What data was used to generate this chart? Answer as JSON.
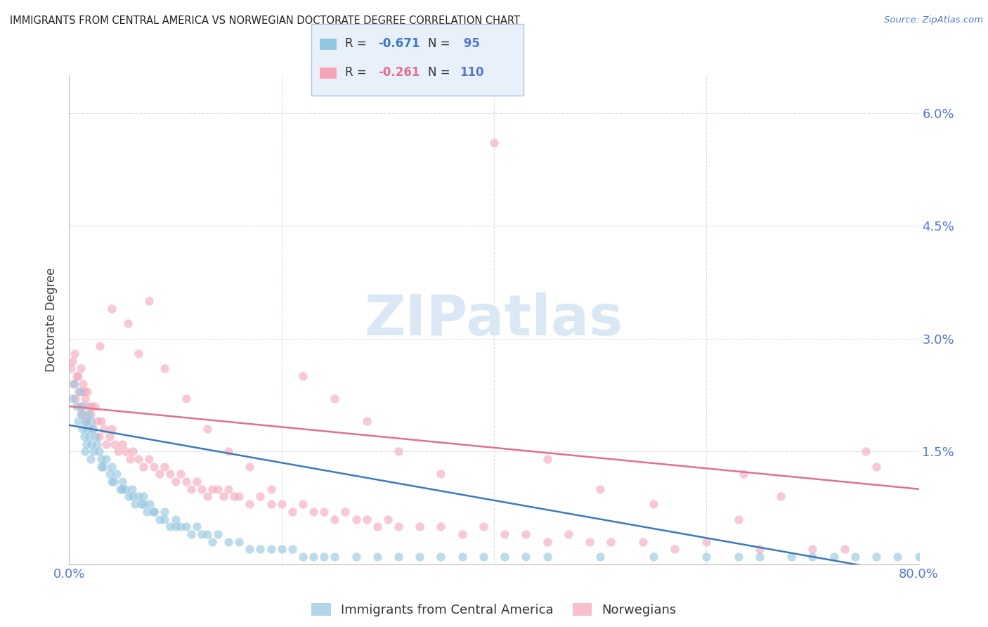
{
  "title": "IMMIGRANTS FROM CENTRAL AMERICA VS NORWEGIAN DOCTORATE DEGREE CORRELATION CHART",
  "source": "Source: ZipAtlas.com",
  "ylabel": "Doctorate Degree",
  "x_min": 0.0,
  "x_max": 80.0,
  "y_min": 0.0,
  "y_max": 6.5,
  "ytick_vals": [
    0.0,
    1.5,
    3.0,
    4.5,
    6.0
  ],
  "ytick_labels": [
    "",
    "1.5%",
    "3.0%",
    "4.5%",
    "6.0%"
  ],
  "xtick_vals": [
    0.0,
    20.0,
    40.0,
    60.0,
    80.0
  ],
  "xtick_labels": [
    "0.0%",
    "",
    "",
    "",
    "80.0%"
  ],
  "blue_R": "-0.671",
  "blue_N": "95",
  "pink_R": "-0.261",
  "pink_N": "110",
  "blue_color": "#92c5de",
  "pink_color": "#f4a6b8",
  "blue_line_color": "#3a7abf",
  "pink_line_color": "#e07090",
  "watermark_text": "ZIPatlas",
  "watermark_color": "#dae8f5",
  "grid_color": "#d8dff0",
  "background_color": "#ffffff",
  "tick_label_color": "#5577cc",
  "title_color": "#222222",
  "legend_bg_color": "#e8f0fa",
  "legend_edge_color": "#b0c4e8",
  "blue_scatter_x": [
    0.3,
    0.5,
    0.7,
    0.8,
    1.0,
    1.1,
    1.2,
    1.3,
    1.4,
    1.5,
    1.6,
    1.7,
    1.8,
    1.9,
    2.0,
    2.1,
    2.2,
    2.3,
    2.5,
    2.6,
    2.8,
    3.0,
    3.2,
    3.5,
    3.8,
    4.0,
    4.2,
    4.5,
    4.8,
    5.0,
    5.3,
    5.6,
    5.9,
    6.2,
    6.5,
    6.8,
    7.0,
    7.3,
    7.6,
    8.0,
    8.5,
    9.0,
    9.5,
    10.0,
    10.5,
    11.0,
    11.5,
    12.0,
    12.5,
    13.0,
    13.5,
    14.0,
    15.0,
    16.0,
    17.0,
    18.0,
    19.0,
    20.0,
    21.0,
    22.0,
    23.0,
    24.0,
    25.0,
    27.0,
    29.0,
    31.0,
    33.0,
    35.0,
    37.0,
    39.0,
    41.0,
    43.0,
    45.0,
    50.0,
    55.0,
    60.0,
    63.0,
    65.0,
    68.0,
    70.0,
    72.0,
    74.0,
    76.0,
    78.0,
    80.0,
    1.5,
    2.0,
    3.0,
    4.0,
    5.0,
    6.0,
    7.0,
    8.0,
    9.0,
    10.0
  ],
  "blue_scatter_y": [
    2.2,
    2.4,
    2.1,
    1.9,
    2.3,
    2.0,
    1.8,
    2.1,
    1.7,
    1.9,
    1.6,
    1.8,
    2.0,
    1.7,
    1.9,
    1.6,
    1.8,
    1.5,
    1.7,
    1.6,
    1.5,
    1.4,
    1.3,
    1.4,
    1.2,
    1.3,
    1.1,
    1.2,
    1.0,
    1.1,
    1.0,
    0.9,
    1.0,
    0.8,
    0.9,
    0.8,
    0.9,
    0.7,
    0.8,
    0.7,
    0.6,
    0.7,
    0.5,
    0.6,
    0.5,
    0.5,
    0.4,
    0.5,
    0.4,
    0.4,
    0.3,
    0.4,
    0.3,
    0.3,
    0.2,
    0.2,
    0.2,
    0.2,
    0.2,
    0.1,
    0.1,
    0.1,
    0.1,
    0.1,
    0.1,
    0.1,
    0.1,
    0.1,
    0.1,
    0.1,
    0.1,
    0.1,
    0.1,
    0.1,
    0.1,
    0.1,
    0.1,
    0.1,
    0.1,
    0.1,
    0.1,
    0.1,
    0.1,
    0.1,
    0.1,
    1.5,
    1.4,
    1.3,
    1.1,
    1.0,
    0.9,
    0.8,
    0.7,
    0.6,
    0.5
  ],
  "pink_scatter_x": [
    0.2,
    0.4,
    0.5,
    0.6,
    0.8,
    0.9,
    1.0,
    1.1,
    1.2,
    1.3,
    1.5,
    1.6,
    1.7,
    1.8,
    2.0,
    2.2,
    2.4,
    2.6,
    2.8,
    3.0,
    3.3,
    3.5,
    3.8,
    4.0,
    4.3,
    4.6,
    5.0,
    5.3,
    5.7,
    6.0,
    6.5,
    7.0,
    7.5,
    8.0,
    8.5,
    9.0,
    9.5,
    10.0,
    10.5,
    11.0,
    11.5,
    12.0,
    12.5,
    13.0,
    13.5,
    14.0,
    14.5,
    15.0,
    15.5,
    16.0,
    17.0,
    18.0,
    19.0,
    20.0,
    21.0,
    22.0,
    23.0,
    24.0,
    25.0,
    26.0,
    27.0,
    28.0,
    29.0,
    30.0,
    31.0,
    33.0,
    35.0,
    37.0,
    39.0,
    41.0,
    43.0,
    45.0,
    47.0,
    49.0,
    51.0,
    54.0,
    57.0,
    60.0,
    63.5,
    65.0,
    67.0,
    70.0,
    73.0,
    75.0,
    76.0,
    0.3,
    0.7,
    1.4,
    2.1,
    2.9,
    4.0,
    5.5,
    6.5,
    7.5,
    9.0,
    11.0,
    13.0,
    15.0,
    17.0,
    19.0,
    22.0,
    25.0,
    28.0,
    31.0,
    35.0,
    40.0,
    45.0,
    50.0,
    55.0,
    63.0
  ],
  "pink_scatter_y": [
    2.6,
    2.4,
    2.8,
    2.2,
    2.5,
    2.3,
    2.1,
    2.6,
    2.0,
    2.4,
    2.2,
    1.9,
    2.3,
    2.1,
    2.0,
    1.8,
    2.1,
    1.9,
    1.7,
    1.9,
    1.8,
    1.6,
    1.7,
    1.8,
    1.6,
    1.5,
    1.6,
    1.5,
    1.4,
    1.5,
    1.4,
    1.3,
    1.4,
    1.3,
    1.2,
    1.3,
    1.2,
    1.1,
    1.2,
    1.1,
    1.0,
    1.1,
    1.0,
    0.9,
    1.0,
    1.0,
    0.9,
    1.0,
    0.9,
    0.9,
    0.8,
    0.9,
    0.8,
    0.8,
    0.7,
    0.8,
    0.7,
    0.7,
    0.6,
    0.7,
    0.6,
    0.6,
    0.5,
    0.6,
    0.5,
    0.5,
    0.5,
    0.4,
    0.5,
    0.4,
    0.4,
    0.3,
    0.4,
    0.3,
    0.3,
    0.3,
    0.2,
    0.3,
    1.2,
    0.2,
    0.9,
    0.2,
    0.2,
    1.5,
    1.3,
    2.7,
    2.5,
    2.3,
    2.1,
    2.9,
    3.4,
    3.2,
    2.8,
    3.5,
    2.6,
    2.2,
    1.8,
    1.5,
    1.3,
    1.0,
    2.5,
    2.2,
    1.9,
    1.5,
    1.2,
    5.6,
    1.4,
    1.0,
    0.8,
    0.6
  ]
}
